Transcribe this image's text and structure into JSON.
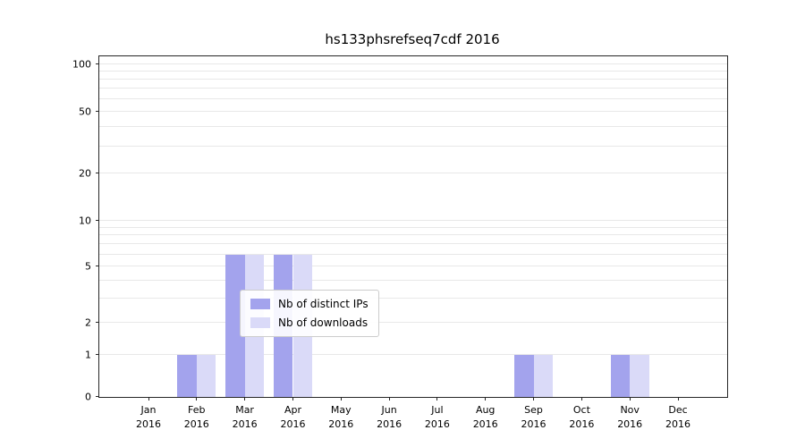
{
  "title": "hs133phsrefseq7cdf 2016",
  "chart_data": {
    "type": "bar",
    "title": "hs133phsrefseq7cdf 2016",
    "categories": [
      "Jan",
      "Feb",
      "Mar",
      "Apr",
      "May",
      "Jun",
      "Jul",
      "Aug",
      "Sep",
      "Oct",
      "Nov",
      "Dec"
    ],
    "category_year": "2016",
    "series": [
      {
        "name": "Nb of distinct IPs",
        "color": "#a3a3ed",
        "values": [
          0,
          1,
          6,
          6,
          0,
          0,
          0,
          0,
          1,
          0,
          1,
          0
        ]
      },
      {
        "name": "Nb of downloads",
        "color": "#dadaf8",
        "values": [
          0,
          1,
          6,
          6,
          0,
          0,
          0,
          0,
          1,
          0,
          1,
          0
        ]
      }
    ],
    "xlabel": "",
    "ylabel": "",
    "y_ticks": [
      0,
      1,
      2,
      5,
      10,
      20,
      50,
      100
    ],
    "y_minor_gridlines": [
      1,
      2,
      3,
      4,
      5,
      6,
      7,
      8,
      9,
      10,
      20,
      30,
      40,
      50,
      60,
      70,
      80,
      90,
      100
    ],
    "ylim": [
      0,
      145
    ],
    "y_scale": "log-like (zero pinned at baseline)",
    "grid": "horizontal light gridlines",
    "legend_position": "inside lower-center"
  },
  "colors": {
    "axis": "#262626",
    "gridline": "#e8e8e8",
    "background": "#ffffff",
    "text": "#000000",
    "series_ips": "#a3a3ed",
    "series_downloads": "#dadaf8"
  }
}
